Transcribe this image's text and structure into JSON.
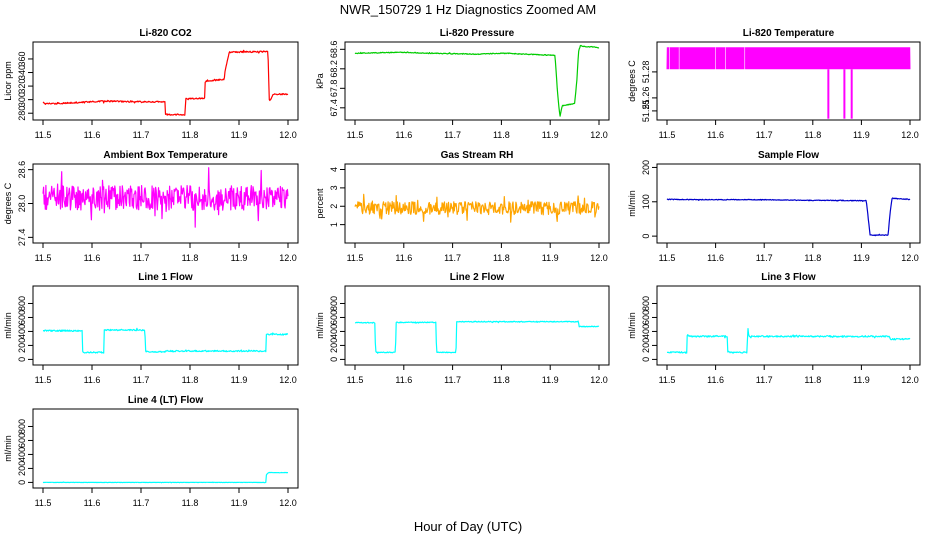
{
  "figure": {
    "title": "NWR_150729  1 Hz Diagnostics Zoomed AM",
    "xlabel": "Hour of Day (UTC)"
  },
  "chart_data": [
    {
      "type": "line",
      "title": "Li-820 CO2",
      "ylabel": "Licor ppm",
      "color": "#ff0000",
      "xlim": [
        11.5,
        12.0
      ],
      "ylim": [
        270,
        385
      ],
      "xticks": [
        "11.5",
        "11.6",
        "11.7",
        "11.8",
        "11.9",
        "12.0"
      ],
      "yticks": [
        {
          "v": 280,
          "t": "280"
        },
        {
          "v": 300,
          "t": "300"
        },
        {
          "v": 320,
          "t": "320"
        },
        {
          "v": 340,
          "t": "340"
        },
        {
          "v": 360,
          "t": "360"
        }
      ],
      "series": [
        {
          "noise": 1.0,
          "seed": 11,
          "x": [
            11.5,
            11.51,
            11.55,
            11.6,
            11.63,
            11.67,
            11.72,
            11.749,
            11.75,
            11.79,
            11.791,
            11.8,
            11.82,
            11.83,
            11.831,
            11.87,
            11.871,
            11.88,
            11.959,
            11.962,
            11.97,
            12.0
          ],
          "y": [
            296,
            294,
            295,
            297,
            298,
            297,
            297,
            297,
            278,
            278,
            301,
            301,
            302,
            302,
            327,
            330,
            340,
            370,
            371,
            298,
            308,
            308
          ]
        }
      ]
    },
    {
      "type": "line",
      "title": "Li-820 Pressure",
      "ylabel": "kPa",
      "color": "#00cc00",
      "xlim": [
        11.5,
        12.0
      ],
      "ylim": [
        67.15,
        68.75
      ],
      "xticks": [
        "11.5",
        "11.6",
        "11.7",
        "11.8",
        "11.9",
        "12.0"
      ],
      "yticks": [
        {
          "v": 67.4,
          "t": "67.4"
        },
        {
          "v": 67.8,
          "t": "67.8"
        },
        {
          "v": 68.2,
          "t": "68.2"
        },
        {
          "v": 68.6,
          "t": "68.6"
        }
      ],
      "series": [
        {
          "noise": 0.008,
          "seed": 23,
          "x": [
            11.5,
            11.55,
            11.6,
            11.65,
            11.7,
            11.75,
            11.8,
            11.85,
            11.9,
            11.91,
            11.915,
            11.92,
            11.925,
            11.93,
            11.95,
            11.955,
            11.958,
            11.962,
            11.965,
            11.99,
            12.0
          ],
          "y": [
            68.52,
            68.53,
            68.54,
            68.52,
            68.51,
            68.5,
            68.52,
            68.5,
            68.48,
            68.47,
            67.7,
            67.22,
            67.45,
            67.45,
            67.49,
            68.0,
            68.55,
            68.68,
            68.66,
            68.65,
            68.63
          ]
        }
      ]
    },
    {
      "type": "line",
      "title": "Li-820 Temperature",
      "ylabel": "degrees C",
      "color": "#ff00ff",
      "xlim": [
        11.5,
        12.0
      ],
      "ylim": [
        51.243,
        51.303
      ],
      "xticks": [
        "11.5",
        "11.6",
        "11.7",
        "11.8",
        "11.9",
        "12.0"
      ],
      "yticks": [
        {
          "v": 51.25,
          "t": "51.25"
        },
        {
          "v": 51.26,
          "t": "51.26"
        },
        {
          "v": 51.28,
          "t": "51.28"
        }
      ],
      "series": [
        {
          "binary": [
            51.282,
            51.299
          ],
          "seed": 31,
          "dips": [
            11.832,
            11.865,
            11.88
          ],
          "dip_value": 51.244,
          "x": [
            11.5,
            12.0
          ],
          "y": [
            51.282,
            51.299
          ]
        }
      ]
    },
    {
      "type": "line",
      "title": "Ambient Box Temperature",
      "ylabel": "degrees C",
      "color": "#ff00ff",
      "xlim": [
        11.5,
        12.0
      ],
      "ylim": [
        27.3,
        28.7
      ],
      "xticks": [
        "11.5",
        "11.6",
        "11.7",
        "11.8",
        "11.9",
        "12.0"
      ],
      "yticks": [
        {
          "v": 27.4,
          "t": "27.4"
        },
        {
          "v": 28.0,
          "t": "28.0"
        },
        {
          "v": 28.6,
          "t": "28.6"
        }
      ],
      "series": [
        {
          "noise": 0.22,
          "seed": 47,
          "x": [
            11.5,
            12.0
          ],
          "y": [
            28.1,
            28.1
          ]
        }
      ]
    },
    {
      "type": "line",
      "title": "Gas Stream RH",
      "ylabel": "percent",
      "color": "#ffa500",
      "xlim": [
        11.5,
        12.0
      ],
      "ylim": [
        0,
        4.3
      ],
      "xticks": [
        "11.5",
        "11.6",
        "11.7",
        "11.8",
        "11.9",
        "12.0"
      ],
      "yticks": [
        {
          "v": 1,
          "t": "1"
        },
        {
          "v": 2,
          "t": "2"
        },
        {
          "v": 3,
          "t": "3"
        },
        {
          "v": 4,
          "t": "4"
        }
      ],
      "series": [
        {
          "noise": 0.35,
          "seed": 59,
          "x": [
            11.5,
            12.0
          ],
          "y": [
            1.9,
            1.9
          ]
        }
      ]
    },
    {
      "type": "line",
      "title": "Sample Flow",
      "ylabel": "ml/min",
      "color": "#0000cc",
      "xlim": [
        11.5,
        12.0
      ],
      "ylim": [
        -20,
        210
      ],
      "xticks": [
        "11.5",
        "11.6",
        "11.7",
        "11.8",
        "11.9",
        "12.0"
      ],
      "yticks": [
        {
          "v": 0,
          "t": "0"
        },
        {
          "v": 100,
          "t": "100"
        },
        {
          "v": 200,
          "t": "200"
        }
      ],
      "series": [
        {
          "noise": 1.0,
          "seed": 67,
          "x": [
            11.5,
            11.6,
            11.7,
            11.8,
            11.85,
            11.91,
            11.918,
            11.955,
            11.958,
            11.963,
            12.0
          ],
          "y": [
            107,
            106,
            106,
            104,
            104,
            103,
            3,
            3,
            55,
            110,
            107
          ]
        }
      ]
    },
    {
      "type": "line",
      "title": "Line 1 Flow",
      "ylabel": "ml/min",
      "color": "#00ffff",
      "xlim": [
        11.5,
        12.0
      ],
      "ylim": [
        -80,
        1050
      ],
      "xticks": [
        "11.5",
        "11.6",
        "11.7",
        "11.8",
        "11.9",
        "12.0"
      ],
      "yticks": [
        {
          "v": 0,
          "t": "0"
        },
        {
          "v": 200,
          "t": "200"
        },
        {
          "v": 400,
          "t": "400"
        },
        {
          "v": 600,
          "t": "600"
        },
        {
          "v": 800,
          "t": "800"
        }
      ],
      "series": [
        {
          "noise": 10,
          "seed": 71,
          "x": [
            11.5,
            11.58,
            11.581,
            11.624,
            11.625,
            11.708,
            11.709,
            11.75,
            11.751,
            11.955,
            11.956,
            12.0
          ],
          "y": [
            410,
            410,
            100,
            100,
            420,
            420,
            110,
            110,
            120,
            120,
            360,
            360
          ]
        }
      ]
    },
    {
      "type": "line",
      "title": "Line 2 Flow",
      "ylabel": "ml/min",
      "color": "#00ffff",
      "xlim": [
        11.5,
        12.0
      ],
      "ylim": [
        -80,
        1050
      ],
      "xticks": [
        "11.5",
        "11.6",
        "11.7",
        "11.8",
        "11.9",
        "12.0"
      ],
      "yticks": [
        {
          "v": 0,
          "t": "0"
        },
        {
          "v": 200,
          "t": "200"
        },
        {
          "v": 400,
          "t": "400"
        },
        {
          "v": 600,
          "t": "600"
        },
        {
          "v": 800,
          "t": "800"
        }
      ],
      "series": [
        {
          "noise": 6,
          "seed": 83,
          "x": [
            11.5,
            11.541,
            11.542,
            11.583,
            11.584,
            11.666,
            11.667,
            11.707,
            11.708,
            11.958,
            11.959,
            12.0
          ],
          "y": [
            525,
            525,
            100,
            100,
            530,
            530,
            100,
            100,
            540,
            540,
            470,
            470
          ]
        }
      ]
    },
    {
      "type": "line",
      "title": "Line 3 Flow",
      "ylabel": "ml/min",
      "color": "#00ffff",
      "xlim": [
        11.5,
        12.0
      ],
      "ylim": [
        -80,
        1050
      ],
      "xticks": [
        "11.5",
        "11.6",
        "11.7",
        "11.8",
        "11.9",
        "12.0"
      ],
      "yticks": [
        {
          "v": 0,
          "t": "0"
        },
        {
          "v": 200,
          "t": "200"
        },
        {
          "v": 400,
          "t": "400"
        },
        {
          "v": 600,
          "t": "600"
        },
        {
          "v": 800,
          "t": "800"
        }
      ],
      "series": [
        {
          "noise": 10,
          "seed": 97,
          "x": [
            11.5,
            11.541,
            11.542,
            11.543,
            11.545,
            11.624,
            11.625,
            11.665,
            11.666,
            11.668,
            11.67,
            11.958,
            11.959,
            12.0
          ],
          "y": [
            100,
            100,
            470,
            340,
            330,
            330,
            100,
            100,
            480,
            340,
            330,
            330,
            290,
            290
          ]
        }
      ]
    },
    {
      "type": "line",
      "title": "Line 4 (LT) Flow",
      "ylabel": "ml/min",
      "color": "#00ffff",
      "xlim": [
        11.5,
        12.0
      ],
      "ylim": [
        -80,
        1050
      ],
      "xticks": [
        "11.5",
        "11.6",
        "11.7",
        "11.8",
        "11.9",
        "12.0"
      ],
      "yticks": [
        {
          "v": 0,
          "t": "0"
        },
        {
          "v": 200,
          "t": "200"
        },
        {
          "v": 400,
          "t": "400"
        },
        {
          "v": 600,
          "t": "600"
        },
        {
          "v": 800,
          "t": "800"
        }
      ],
      "series": [
        {
          "noise": 2,
          "seed": 101,
          "x": [
            11.5,
            11.955,
            11.956,
            11.96,
            12.0
          ],
          "y": [
            0,
            0,
            110,
            140,
            140
          ]
        }
      ]
    }
  ]
}
